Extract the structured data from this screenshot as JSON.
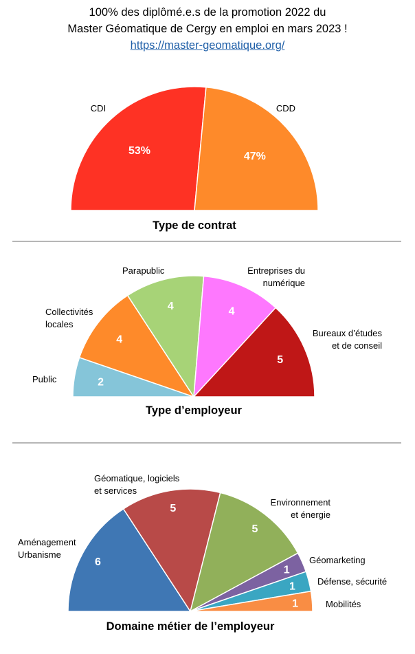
{
  "header": {
    "line1": "100% des diplômé.e.s de la promotion 2022 du",
    "line2": "Master Géomatique de Cergy en emploi en mars 2023 !",
    "link": "https://master-geomatique.org/"
  },
  "chart_data": [
    {
      "type": "pie",
      "variant": "half-pie",
      "title": "Type de contrat",
      "value_format": "percent",
      "slices": [
        {
          "label": "CDI",
          "value": 53,
          "display": "53%",
          "color": "#fe3224"
        },
        {
          "label": "CDD",
          "value": 47,
          "display": "47%",
          "color": "#fe8a2a"
        }
      ]
    },
    {
      "type": "pie",
      "variant": "half-pie",
      "title": "Type d’employeur",
      "value_format": "count",
      "slices": [
        {
          "label": "Public",
          "value": 2,
          "display": "2",
          "color": "#85c5d9"
        },
        {
          "label": "Collectivités locales",
          "value": 4,
          "display": "4",
          "color": "#fe8a2a"
        },
        {
          "label": "Parapublic",
          "value": 4,
          "display": "4",
          "color": "#a7d377"
        },
        {
          "label": "Entreprises du numérique",
          "value": 4,
          "display": "4",
          "color": "#fe78fe"
        },
        {
          "label": "Bureaux d’études et de conseil",
          "value": 5,
          "display": "5",
          "color": "#bf1717"
        }
      ]
    },
    {
      "type": "pie",
      "variant": "half-pie",
      "title": "Domaine métier de l’employeur",
      "value_format": "count",
      "slices": [
        {
          "label": "Aménagement Urbanisme",
          "value": 6,
          "display": "6",
          "color": "#3f77b4"
        },
        {
          "label": "Géomatique, logiciels et services",
          "value": 5,
          "display": "5",
          "color": "#b84a48"
        },
        {
          "label": "Environnement et énergie",
          "value": 5,
          "display": "5",
          "color": "#91b05a"
        },
        {
          "label": "Géomarketing",
          "value": 1,
          "display": "1",
          "color": "#7c62a1"
        },
        {
          "label": "Défense, sécurité",
          "value": 1,
          "display": "1",
          "color": "#3aa6c2"
        },
        {
          "label": "Mobilités",
          "value": 1,
          "display": "1",
          "color": "#f98d44"
        }
      ]
    }
  ]
}
